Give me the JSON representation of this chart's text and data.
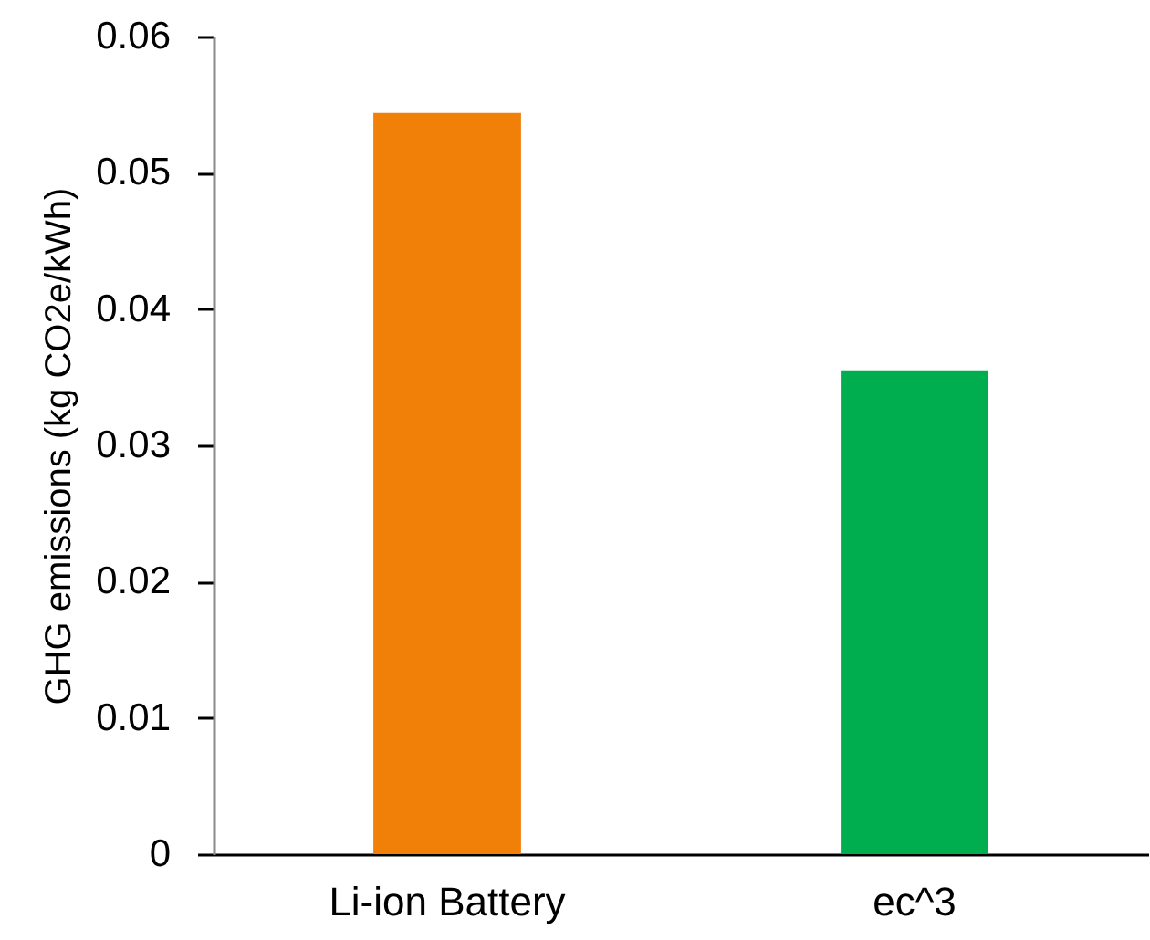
{
  "chart_data": {
    "type": "bar",
    "categories": [
      "Li-ion Battery",
      "ec^3"
    ],
    "values": [
      0.0544,
      0.0355
    ],
    "colors": [
      "#f08008",
      "#00ae50"
    ],
    "ylabel": "GHG emissions (kg CO2e/kWh)",
    "ylim": [
      0,
      0.06
    ],
    "yticks": [
      0,
      0.01,
      0.02,
      0.03,
      0.04,
      0.05,
      0.06
    ],
    "grid": false
  }
}
